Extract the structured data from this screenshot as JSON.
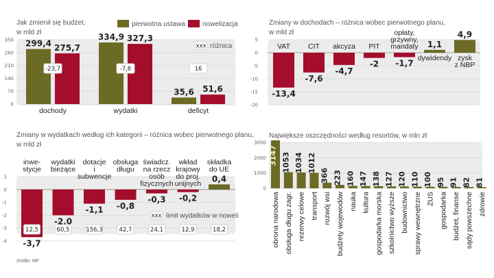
{
  "colors": {
    "olive": "#6b6b26",
    "red": "#a50d2c",
    "bg_panel": "#ececec",
    "grid": "#d8d8d8"
  },
  "source": "źródło: MF",
  "chart_data": [
    {
      "id": "budget",
      "type": "bar",
      "title": "Jak zmienił się budżet,",
      "subtitle": "w mld zł",
      "categories": [
        "dochody",
        "wydatki",
        "deficyt"
      ],
      "series": [
        {
          "name": "pierwotna ustawa",
          "values": [
            299.4,
            334.9,
            35.6
          ],
          "labels": [
            "299,4",
            "334,9",
            "35,6"
          ]
        },
        {
          "name": "nowelizacja",
          "values": [
            275.7,
            327.3,
            51.6
          ],
          "labels": [
            "275,7",
            "327,3",
            "51,6"
          ]
        }
      ],
      "differences": [
        "-23,7",
        "-7,6",
        "16"
      ],
      "difference_legend": {
        "box": "xxx",
        "label": "różnica"
      },
      "yticks": [
        0,
        70,
        140,
        210,
        280,
        350
      ],
      "ylim": [
        0,
        350
      ],
      "legend": "top-right",
      "grid": true
    },
    {
      "id": "revenue",
      "type": "bar",
      "title": "Zmiany w dochodach – różnica wobec pierwotnego planu,",
      "subtitle": "w mld zł",
      "categories": [
        "VAT",
        "CIT",
        "akcyza",
        "PIT",
        "opłaty, grzywny, mandaty",
        "dywidendy",
        "zysk z NBP"
      ],
      "category_lines": [
        [
          "VAT"
        ],
        [
          "CIT"
        ],
        [
          "akcyza"
        ],
        [
          "PIT"
        ],
        [
          "opłaty,",
          "grzywny,",
          "mandaty"
        ],
        [
          "dywidendy"
        ],
        [
          "zysk",
          "z NBP"
        ]
      ],
      "values": [
        -13.4,
        -7.6,
        -4.7,
        -2,
        -1.7,
        1.1,
        4.9
      ],
      "labels": [
        "-13,4",
        "-7,6",
        "-4,7",
        "-2",
        "-1,7",
        "1,1",
        "4,9"
      ],
      "yticks": [
        5,
        0,
        -5,
        -10,
        -15,
        -20
      ],
      "ylim": [
        -20,
        5
      ],
      "grid": true
    },
    {
      "id": "expenditure",
      "type": "bar",
      "title": "Zmiany w wydatkach według ich kategorii – różnica wobec pierwotnego planu,",
      "subtitle": "w mld zł",
      "categories": [
        "inwestycje",
        "wydatki bieżące",
        "dotacje i subwencje",
        "obsługa długu",
        "świadcz. na rzecz osób fizycznych",
        "wkład krajowy do proj. unijnych",
        "składka do UE"
      ],
      "category_lines": [
        [
          "inwe-",
          "stycje"
        ],
        [
          "wydatki",
          "bieżące"
        ],
        [
          "dotacje",
          "i",
          "subwencje"
        ],
        [
          "obsługa",
          "długu"
        ],
        [
          "świadcz.",
          "na rzecz",
          "osób",
          "fizycznych"
        ],
        [
          "wkład",
          "krajowy",
          "do proj.",
          "unijnych"
        ],
        [
          "składka",
          "do UE"
        ]
      ],
      "values": [
        -3.7,
        -2.0,
        -1.1,
        -0.8,
        -0.3,
        -0.2,
        0.4
      ],
      "labels": [
        "-3,7",
        "-2,0",
        "-1,1",
        "-0,8",
        "-0,3",
        "-0,2",
        "0,4"
      ],
      "limits": [
        "12,5",
        "60,5",
        "156,3",
        "42,7",
        "24,1",
        "12,9",
        "18,2"
      ],
      "limit_legend": {
        "box": "xxx",
        "label": "limit wydatków w noweli"
      },
      "yticks": [
        1,
        0,
        -1,
        -2,
        -3,
        -4
      ],
      "ylim": [
        -4,
        1
      ],
      "grid": true
    },
    {
      "id": "ministries",
      "type": "bar",
      "title": "Największe oszczędności według resortów, w mln zł",
      "categories": [
        "obrona narodowa",
        "obsługa długu zagr.",
        "rezerwy celowe",
        "transport",
        "rozwój wsi",
        "budżety wojewodów",
        "nauka",
        "kultura",
        "gospodarka morska",
        "szkolnictwo wyższe",
        "budownictwo",
        "sprawy wewnętrzne",
        "ZUS",
        "gospodarka",
        "budżet, finanse",
        "sądy powszechne",
        "zdrowie"
      ],
      "values": [
        3147,
        1053,
        1034,
        1012,
        366,
        223,
        160,
        147,
        138,
        127,
        120,
        110,
        100,
        95,
        91,
        82,
        81
      ],
      "yticks": [
        0,
        1000,
        2000,
        3000
      ],
      "ylim": [
        0,
        3000
      ],
      "grid": true
    }
  ]
}
